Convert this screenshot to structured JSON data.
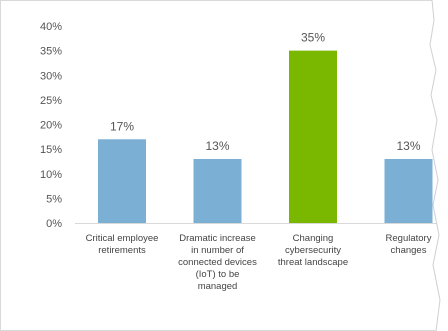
{
  "chart_data": {
    "type": "bar",
    "categories": [
      [
        "Critical employee",
        "retirements"
      ],
      [
        "Dramatic increase",
        "in number of",
        "connected devices",
        "(IoT) to be",
        "managed"
      ],
      [
        "Changing",
        "cybersecurity",
        "threat landscape"
      ],
      [
        "Regulatory",
        "changes"
      ]
    ],
    "values": [
      17,
      13,
      35,
      13
    ],
    "data_labels": [
      "17%",
      "13%",
      "35%",
      "13%"
    ],
    "bar_colors": [
      "#7bafd4",
      "#7bafd4",
      "#7ab800",
      "#7bafd4"
    ],
    "highlight_category_index": 2,
    "y_ticks": [
      "0%",
      "5%",
      "10%",
      "15%",
      "20%",
      "25%",
      "30%",
      "35%",
      "40%"
    ],
    "ylim": [
      0,
      40
    ],
    "grid": false,
    "title": "",
    "xlabel": "",
    "ylabel": ""
  }
}
